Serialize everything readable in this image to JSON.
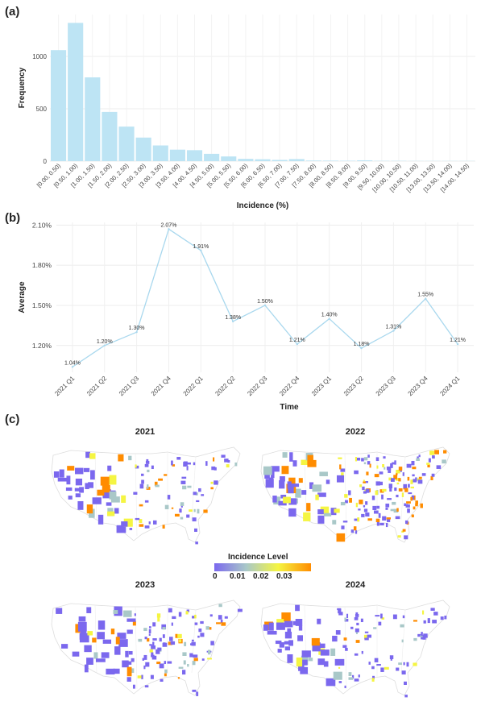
{
  "panels": {
    "a": "(a)",
    "b": "(b)",
    "c": "(c)"
  },
  "chart_data": [
    {
      "type": "bar",
      "ylabel": "Frequency",
      "xlabel": "Incidence (%)",
      "ylim": [
        0,
        1400
      ],
      "yticks": [
        0,
        500,
        1000
      ],
      "grid": true,
      "color": "#bde4f4",
      "categories": [
        "[0.00, 0.50)",
        "[0.50, 1.00)",
        "[1.00, 1.50)",
        "[1.50, 2.00)",
        "[2.00, 2.50)",
        "[2.50, 3.00)",
        "[3.00, 3.50)",
        "[3.50, 4.00)",
        "[4.00, 4.50)",
        "[4.50, 5.00)",
        "[5.00, 5.50)",
        "[5.50, 6.00)",
        "[6.00, 6.50)",
        "[6.50, 7.00)",
        "[7.00, 7.50)",
        "[7.50, 8.00)",
        "[8.00, 8.50)",
        "[8.50, 9.00)",
        "[9.00, 9.50)",
        "[9.50, 10.00)",
        "[10.00, 10.50)",
        "[10.50, 11.00)",
        "[13.00, 13.50)",
        "[13.50, 14.00)",
        "[14.00, 14.50)"
      ],
      "values": [
        1060,
        1320,
        800,
        470,
        330,
        225,
        150,
        110,
        105,
        70,
        45,
        22,
        18,
        12,
        20,
        6,
        5,
        4,
        8,
        3,
        3,
        2,
        2,
        2,
        2
      ]
    },
    {
      "type": "line",
      "ylabel": "Average",
      "xlabel": "Time",
      "ylim": [
        1.0,
        2.12
      ],
      "yticks": [
        1.2,
        1.5,
        1.8,
        2.1
      ],
      "ytick_labels": [
        "1.20%",
        "1.50%",
        "1.80%",
        "2.10%"
      ],
      "grid": true,
      "color": "#a9d8ee",
      "x": [
        "2021 Q1",
        "2021 Q2",
        "2021 Q3",
        "2021 Q4",
        "2022 Q1",
        "2022 Q2",
        "2022 Q3",
        "2022 Q4",
        "2023 Q1",
        "2023 Q2",
        "2023 Q3",
        "2023 Q4",
        "2024 Q1"
      ],
      "y": [
        1.04,
        1.2,
        1.3,
        2.07,
        1.91,
        1.38,
        1.5,
        1.21,
        1.4,
        1.18,
        1.31,
        1.55,
        1.21
      ],
      "data_labels": [
        "1.04%",
        "1.20%",
        "1.30%",
        "2.07%",
        "1.91%",
        "1.38%",
        "1.50%",
        "1.21%",
        "1.40%",
        "1.18%",
        "1.31%",
        "1.55%",
        "1.21%"
      ]
    },
    {
      "type": "heatmap",
      "maps": [
        {
          "title": "2021"
        },
        {
          "title": "2022"
        },
        {
          "title": "2023"
        },
        {
          "title": "2024"
        }
      ],
      "legend": {
        "title": "Incidence Level",
        "ticks": [
          "0",
          "0.01",
          "0.02",
          "0.03"
        ],
        "colors": [
          "#7b68ee",
          "#a9c8c8",
          "#f5f542",
          "#ff8c00"
        ]
      }
    }
  ]
}
